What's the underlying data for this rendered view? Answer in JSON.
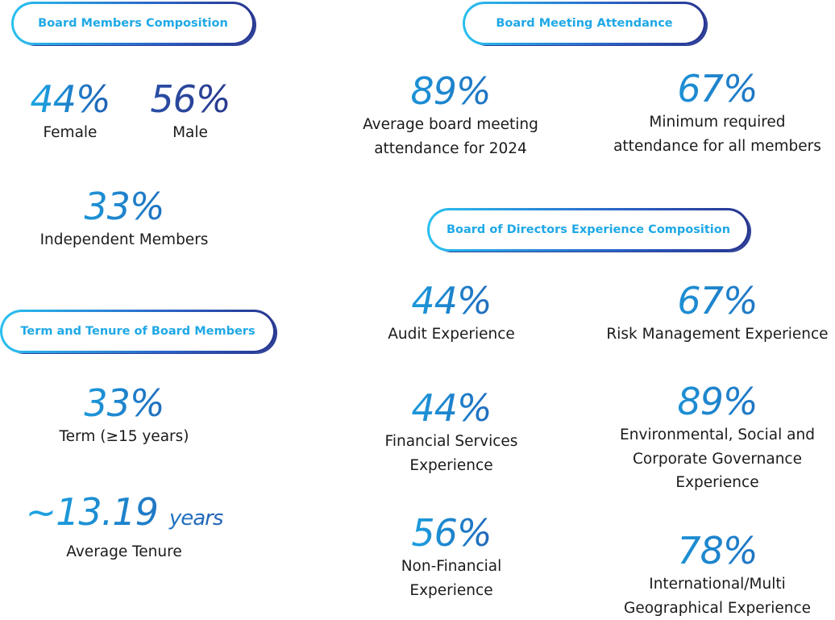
{
  "headers": {
    "board_composition": "Board Members Composition",
    "meeting_attendance": "Board Meeting Attendance",
    "experience": "Board of Directors Experience Composition",
    "term_tenure": "Term and Tenure of Board Members"
  },
  "composition": {
    "female": {
      "value": "44%",
      "label": "Female"
    },
    "male": {
      "value": "56%",
      "label": "Male"
    },
    "independent": {
      "value": "33%",
      "label": "Independent Members"
    }
  },
  "attendance": {
    "average": {
      "value": "89%",
      "label_1": "Average board meeting",
      "label_2": "attendance for 2024"
    },
    "minimum": {
      "value": "67%",
      "label_1": "Minimum required",
      "label_2": "attendance for all members"
    }
  },
  "experience": {
    "audit": {
      "value": "44%",
      "label": "Audit Experience"
    },
    "risk": {
      "value": "67%",
      "label": "Risk Management Experience"
    },
    "financial": {
      "value": "44%",
      "label_1": "Financial Services",
      "label_2": "Experience"
    },
    "esg": {
      "value": "89%",
      "label_1": "Environmental, Social and",
      "label_2": "Corporate Governance",
      "label_3": "Experience"
    },
    "non_financial": {
      "value": "56%",
      "label_1": "Non-Financial",
      "label_2": "Experience"
    },
    "international": {
      "value": "78%",
      "label_1": "International/Multi",
      "label_2": "Geographical Experience"
    }
  },
  "tenure": {
    "term": {
      "value": "33%",
      "label": "Term (≥15 years)"
    },
    "average": {
      "value": "~13.19",
      "unit": "years",
      "label": "Average Tenure"
    }
  },
  "colors": {
    "accent_light": "#1ba6e3",
    "accent_dark": "#2a3a8f",
    "text": "#1b1b1b"
  }
}
